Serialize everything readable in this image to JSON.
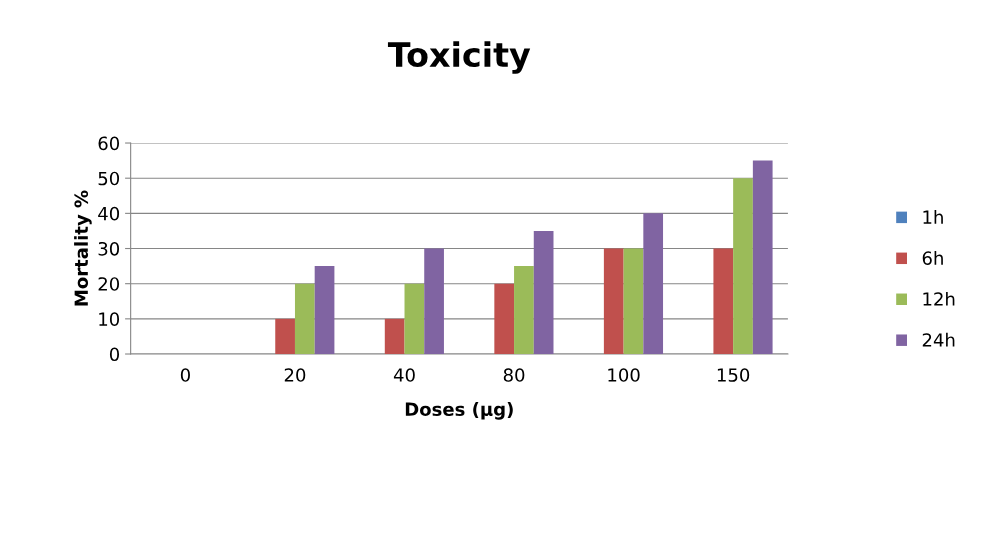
{
  "chart_data": {
    "type": "bar",
    "title": "Toxicity",
    "xlabel": "Doses (µg)",
    "ylabel": "Mortality %",
    "categories": [
      "0",
      "20",
      "40",
      "80",
      "100",
      "150"
    ],
    "series": [
      {
        "name": "1h",
        "color": "#4f81bd",
        "values": [
          0,
          0,
          0,
          0,
          0,
          0
        ]
      },
      {
        "name": "6h",
        "color": "#c0504d",
        "values": [
          0,
          10,
          10,
          20,
          30,
          30
        ]
      },
      {
        "name": "12h",
        "color": "#9bbb59",
        "values": [
          0,
          20,
          20,
          25,
          30,
          50
        ]
      },
      {
        "name": "24h",
        "color": "#8064a2",
        "values": [
          0,
          25,
          30,
          35,
          40,
          55
        ]
      }
    ],
    "ylim": [
      0,
      60
    ],
    "yticks": [
      0,
      10,
      20,
      30,
      40,
      50,
      60
    ],
    "grid": "y",
    "legend": "right"
  }
}
